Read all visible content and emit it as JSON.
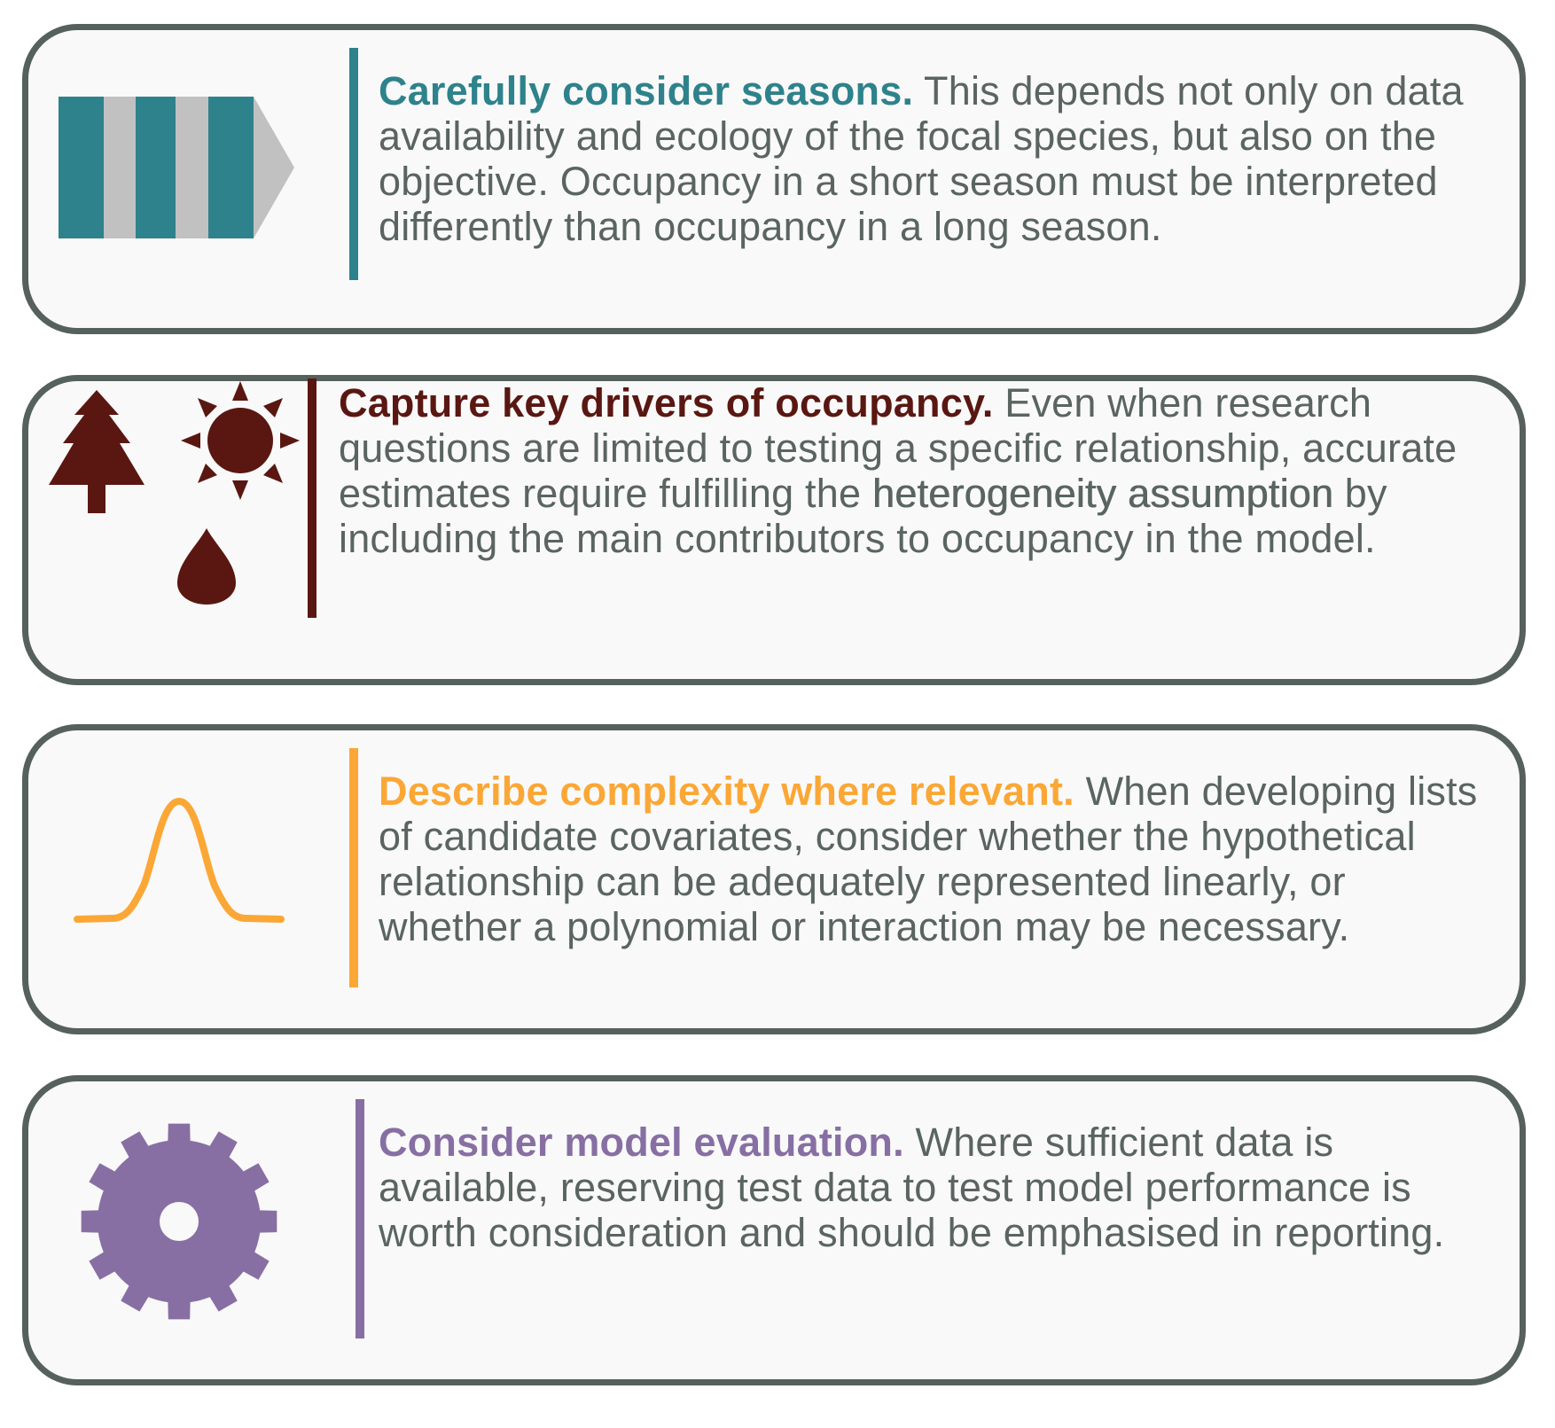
{
  "cards": [
    {
      "heading": "Carefully consider seasons.",
      "body": "This depends not only on data availability and ecology of the focal species, but also on the objective. Occupancy in a short season must be interpreted differently than occupancy in a long season.",
      "color": "#2e828b",
      "icon": "season-stripes-arrow-icon"
    },
    {
      "heading": "Capture key drivers of occupancy.",
      "body_before": "Even when research questions are limited to testing a specific relationship, accurate estimates require fulfilling the",
      "emphasis": "heterogeneity assumption",
      "body_after": "by including the main contributors to occupancy in the model.",
      "color": "#5a1712",
      "icons": [
        "tree-icon",
        "sun-icon",
        "water-drop-icon"
      ]
    },
    {
      "heading": "Describe complexity where relevant.",
      "body": "When developing lists of candidate covariates, consider whether the hypothetical relationship can be adequately represented linearly, or whether a polynomial or interaction may be necessary.",
      "color": "#fba736",
      "icon": "bell-curve-icon"
    },
    {
      "heading": "Consider model evaluation.",
      "body": "Where sufficient data is available, reserving test data to test model performance is worth consideration and should be emphasised in reporting.",
      "color": "#876fa3",
      "icon": "gear-icon"
    }
  ],
  "colors": {
    "border": "#56605d",
    "text": "#5a6461",
    "card_bg": "#f9f9f9",
    "stripe_light": "#c1c1c1"
  }
}
